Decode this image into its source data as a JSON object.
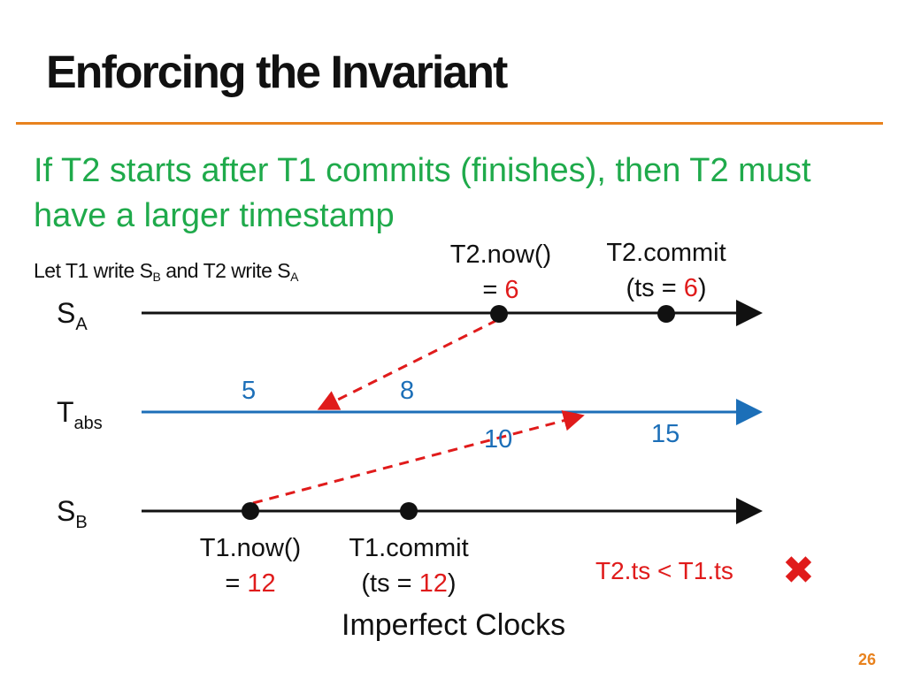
{
  "title": "Enforcing the Invariant",
  "headline": "If T2 starts after T1 commits (finishes), then T2 must have a larger timestamp",
  "setup": {
    "prefix": "Let T1 write S",
    "sub1": "B",
    "middle": " and T2 write S",
    "sub2": "A"
  },
  "lanes": {
    "sa": {
      "main": "S",
      "sub": "A"
    },
    "tabs": {
      "main": "T",
      "sub": "abs"
    },
    "sb": {
      "main": "S",
      "sub": "B"
    }
  },
  "annotations": {
    "t2_now": {
      "label": "T2.now()",
      "eq": "= ",
      "value": "6"
    },
    "t2_commit": {
      "label": "T2.commit",
      "open": "(ts = ",
      "value": "6",
      "close": ")"
    },
    "t1_now": {
      "label": "T1.now()",
      "eq": "= ",
      "value": "12"
    },
    "t1_commit": {
      "label": "T1.commit",
      "open": "(ts = ",
      "value": "12",
      "close": ")"
    }
  },
  "tabs_numbers": [
    "5",
    "8",
    "10",
    "15"
  ],
  "verdict": "T2.ts < T1.ts",
  "verdict_icon": "cross-icon",
  "caption": "Imperfect Clocks",
  "page_number": "26",
  "colors": {
    "accent": "#e8821e",
    "headline": "#1faa4b",
    "emphasis": "#e01b1b",
    "abs_time": "#1c6fb8",
    "lane": "#111111"
  }
}
